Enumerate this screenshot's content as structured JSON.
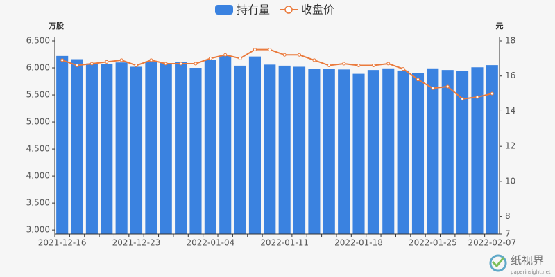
{
  "chart_data": {
    "type": "bar-line",
    "categories": [
      "2021-12-16",
      null,
      null,
      null,
      null,
      "2021-12-23",
      null,
      null,
      null,
      null,
      "2022-01-04",
      null,
      null,
      null,
      null,
      "2022-01-11",
      null,
      null,
      null,
      null,
      "2022-01-18",
      null,
      null,
      null,
      null,
      "2022-01-25",
      null,
      null,
      null,
      "2022-02-07"
    ],
    "series": [
      {
        "name": "持有量",
        "color": "#3a82e0",
        "type": "bar",
        "values": [
          6220,
          6160,
          6080,
          6070,
          6100,
          6020,
          6120,
          6090,
          6110,
          6000,
          6150,
          6220,
          6040,
          6210,
          6060,
          6040,
          6020,
          5980,
          5980,
          5970,
          5890,
          5960,
          5990,
          5950,
          5910,
          5990,
          5960,
          5940,
          6010,
          6050
        ]
      },
      {
        "name": "收盘价",
        "color": "#ea7a3c",
        "type": "line",
        "axis": "y2",
        "values": [
          16.9,
          16.6,
          16.7,
          16.8,
          16.9,
          16.6,
          16.9,
          16.7,
          16.7,
          16.7,
          17.0,
          17.2,
          17.0,
          17.5,
          17.5,
          17.2,
          17.2,
          16.9,
          16.6,
          16.7,
          16.6,
          16.6,
          16.7,
          16.4,
          15.8,
          15.3,
          15.4,
          14.7,
          14.8,
          15.0
        ]
      }
    ],
    "y_label": "万股",
    "y2_label": "元",
    "ylim": [
      2925,
      6500
    ],
    "yticks": [
      {
        "value": 3000,
        "label": "3,000"
      },
      {
        "value": 3500,
        "label": "3,500"
      },
      {
        "value": 4000,
        "label": "4,000"
      },
      {
        "value": 4500,
        "label": "4,500"
      },
      {
        "value": 5000,
        "label": "5,000"
      },
      {
        "value": 5500,
        "label": "5,500"
      },
      {
        "value": 6000,
        "label": "6,000"
      },
      {
        "value": 6500,
        "label": "6,500"
      }
    ],
    "y2lim": [
      7,
      18
    ],
    "y2ticks": [
      7,
      8,
      10,
      12,
      14,
      16,
      18
    ],
    "grid": false,
    "legend": "top",
    "watermark": {
      "name": "纸视界",
      "url": "paperinsight.net"
    }
  }
}
